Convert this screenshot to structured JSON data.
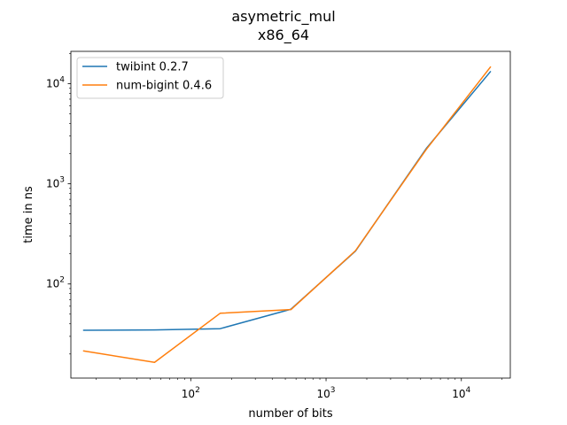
{
  "chart_data": {
    "type": "line",
    "title": "asymetric_mul",
    "subtitle": "x86_64",
    "xlabel": "number of bits",
    "ylabel": "time in ns",
    "xscale": "log",
    "yscale": "log",
    "xlim": [
      13,
      23000
    ],
    "ylim": [
      11.5,
      21000
    ],
    "x_ticks": [
      {
        "base": "10",
        "exp": "2",
        "value": 100
      },
      {
        "base": "10",
        "exp": "3",
        "value": 1000
      },
      {
        "base": "10",
        "exp": "4",
        "value": 10000
      }
    ],
    "y_ticks": [
      {
        "base": "10",
        "exp": "2",
        "value": 100
      },
      {
        "base": "10",
        "exp": "3",
        "value": 1000
      },
      {
        "base": "10",
        "exp": "4",
        "value": 10000
      }
    ],
    "grid": false,
    "legend_position": "top-left",
    "x": [
      16,
      54,
      165,
      550,
      1650,
      5500,
      16500
    ],
    "series": [
      {
        "name": "twibint 0.2.7",
        "color": "#1f77b4",
        "values": [
          34.5,
          34.8,
          35.8,
          56,
          213,
          2250,
          13300
        ]
      },
      {
        "name": "num-bigint 0.4.6",
        "color": "#ff7f0e",
        "values": [
          21.5,
          16.5,
          51,
          55.5,
          215,
          2200,
          14800
        ]
      }
    ]
  }
}
